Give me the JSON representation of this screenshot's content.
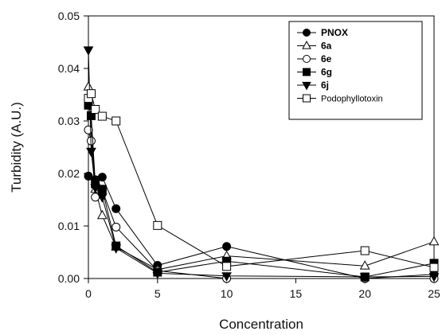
{
  "chart_data": {
    "type": "line",
    "xlabel": "Concentration",
    "ylabel": "Turbidity (A.U.)",
    "xlim": [
      0,
      25
    ],
    "ylim": [
      0,
      0.05
    ],
    "xticks": [
      "0",
      "5",
      "10",
      "15",
      "20",
      "25"
    ],
    "yticks": [
      "0.00",
      "0.01",
      "0.02",
      "0.03",
      "0.04",
      "0.05"
    ],
    "legend_position": "top-right",
    "grid": false,
    "series": [
      {
        "name": "PNOX",
        "marker": "circle-filled",
        "bold": true,
        "x": [
          0,
          0.5,
          1,
          2,
          5,
          10,
          20,
          25
        ],
        "y": [
          0.0195,
          0.0188,
          0.0193,
          0.0133,
          0.0025,
          0.0061,
          0.0,
          0.0008
        ]
      },
      {
        "name": "6a",
        "marker": "triangle-open",
        "bold": true,
        "x": [
          0,
          0.5,
          1,
          2,
          5,
          10,
          20,
          25
        ],
        "y": [
          0.0365,
          0.017,
          0.012,
          0.006,
          0.0017,
          0.0043,
          0.0024,
          0.007
        ]
      },
      {
        "name": "6e",
        "marker": "circle-open",
        "bold": true,
        "x": [
          0,
          0.2,
          0.5,
          1,
          2,
          5,
          10,
          20,
          25
        ],
        "y": [
          0.0283,
          0.0262,
          0.0155,
          0.0168,
          0.0098,
          0.0015,
          0.0,
          0.0,
          0.0
        ]
      },
      {
        "name": "6g",
        "marker": "square-filled",
        "bold": true,
        "x": [
          0,
          0.2,
          0.5,
          1,
          2,
          5,
          10,
          20,
          25
        ],
        "y": [
          0.033,
          0.031,
          0.018,
          0.017,
          0.0062,
          0.0012,
          0.0033,
          0.0003,
          0.0029
        ]
      },
      {
        "name": "6j",
        "marker": "triangle-down-filled",
        "bold": true,
        "x": [
          0,
          0.2,
          0.5,
          1,
          2,
          5,
          10,
          20,
          25
        ],
        "y": [
          0.0435,
          0.0242,
          0.0173,
          0.0155,
          0.0058,
          0.001,
          0.0005,
          0.0003,
          0.0004
        ]
      },
      {
        "name": "Podophyllotoxin",
        "marker": "square-open",
        "bold": false,
        "x": [
          0,
          0.2,
          0.5,
          1,
          2,
          5,
          10,
          20,
          25
        ],
        "y": [
          0.0343,
          0.0352,
          0.0322,
          0.0309,
          0.03,
          0.0101,
          0.0023,
          0.0053,
          0.0021
        ]
      }
    ]
  }
}
